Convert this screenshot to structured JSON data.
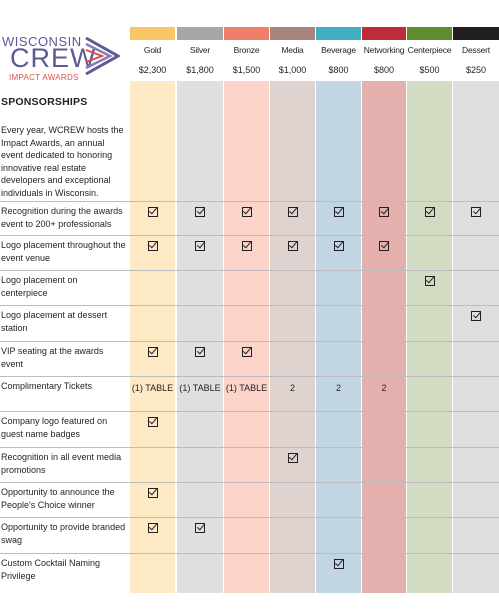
{
  "logo": {
    "line1": "WISCONSIN",
    "line2": "CREW",
    "line3": "IMPACT AWARDS"
  },
  "title": "SPONSORSHIPS",
  "intro": "Every year, WCREW hosts the Impact Awards, an annual event dedicated to honoring innovative real estate developers and exceptional individuals in Wisconsin.",
  "columns": [
    {
      "name": "Gold",
      "price": "$2,300",
      "color": "#f9c565",
      "bg": "#fde9c4"
    },
    {
      "name": "Silver",
      "price": "$1,800",
      "color": "#a6a6a8",
      "bg": "#dfdfe0"
    },
    {
      "name": "Bronze",
      "price": "$1,500",
      "color": "#f07f6a",
      "bg": "#fbd3c8"
    },
    {
      "name": "Media",
      "price": "$1,000",
      "color": "#a8847c",
      "bg": "#dfd3cf"
    },
    {
      "name": "Beverage",
      "price": "$800",
      "color": "#41aec1",
      "bg": "#c2d5e2"
    },
    {
      "name": "Networking",
      "price": "$800",
      "color": "#c02b38",
      "bg": "#e4b0ae"
    },
    {
      "name": "Centerpiece",
      "price": "$500",
      "color": "#5f8c2e",
      "bg": "#d1dcc2"
    },
    {
      "name": "Dessert",
      "price": "$250",
      "color": "#231f20",
      "bg": "#dedede"
    }
  ],
  "rows": [
    {
      "label": "Recognition during the awards event to 200+ professionals",
      "cells": [
        "check",
        "check",
        "check",
        "check",
        "check",
        "check",
        "check",
        "check"
      ]
    },
    {
      "label": "Logo placement throughout the event venue",
      "cells": [
        "check",
        "check",
        "check",
        "check",
        "check",
        "check",
        "",
        ""
      ]
    },
    {
      "label": "Logo placement on centerpiece",
      "cells": [
        "",
        "",
        "",
        "",
        "",
        "",
        "check",
        ""
      ]
    },
    {
      "label": "Logo placement at dessert station",
      "cells": [
        "",
        "",
        "",
        "",
        "",
        "",
        "",
        "check"
      ]
    },
    {
      "label": "VIP seating at the awards event",
      "cells": [
        "check",
        "check",
        "check",
        "",
        "",
        "",
        "",
        ""
      ]
    },
    {
      "label": "Complimentary Tickets",
      "cells": [
        "(1) TABLE",
        "(1) TABLE",
        "(1) TABLE",
        "2",
        "2",
        "2",
        "",
        ""
      ]
    },
    {
      "label": "Company logo featured on guest name badges",
      "cells": [
        "check",
        "",
        "",
        "",
        "",
        "",
        "",
        ""
      ]
    },
    {
      "label": "Recognition in all event media promotions",
      "cells": [
        "",
        "",
        "",
        "check",
        "",
        "",
        "",
        ""
      ]
    },
    {
      "label": "Opportunity to announce the People's Choice winner",
      "cells": [
        "check",
        "",
        "",
        "",
        "",
        "",
        "",
        ""
      ]
    },
    {
      "label": "Opportunity to provide branded swag",
      "cells": [
        "check",
        "check",
        "",
        "",
        "",
        "",
        "",
        ""
      ]
    },
    {
      "label": "Custom Cocktail Naming Privilege",
      "cells": [
        "",
        "",
        "",
        "",
        "check",
        "",
        "",
        ""
      ]
    }
  ]
}
